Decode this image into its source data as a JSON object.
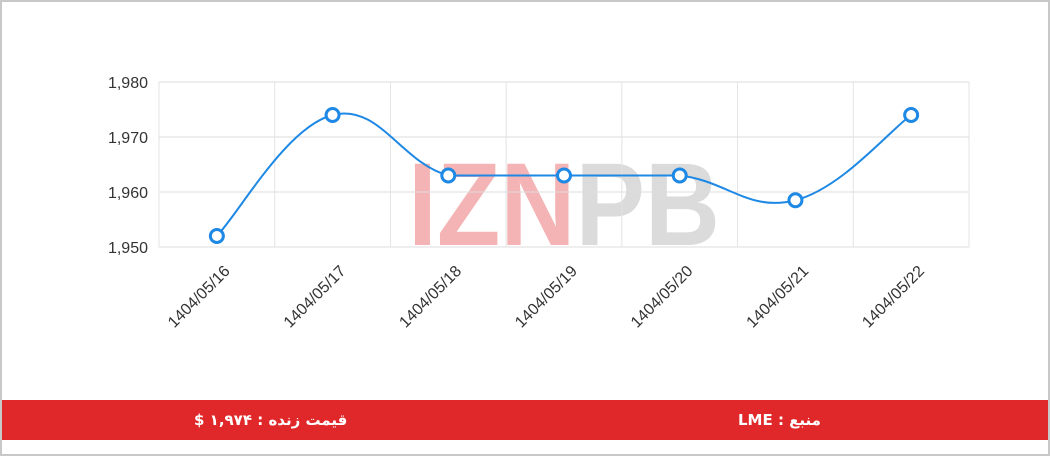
{
  "chart_data": {
    "type": "line",
    "categories": [
      "1404/05/16",
      "1404/05/17",
      "1404/05/18",
      "1404/05/19",
      "1404/05/20",
      "1404/05/21",
      "1404/05/22"
    ],
    "series": [
      {
        "values": [
          1952,
          1974,
          1963,
          1963,
          1963,
          1958.5,
          1974
        ]
      }
    ],
    "y_ticks": [
      "1,980",
      "1,970",
      "1,960",
      "1,950"
    ],
    "ylim": [
      1950,
      1980
    ],
    "grid": true,
    "line_color": "#1e88e5",
    "point_fill": "#ffffff",
    "title": "",
    "xlabel": "",
    "ylabel": ""
  },
  "watermark": {
    "text": "IZNPB",
    "red": "#e0282a",
    "gray": "#9a9a9a"
  },
  "footer": {
    "background": "#e0282a",
    "price_text": "قیمت زنده : ۱,۹۷۴ $",
    "source_text": "منبع : LME"
  }
}
